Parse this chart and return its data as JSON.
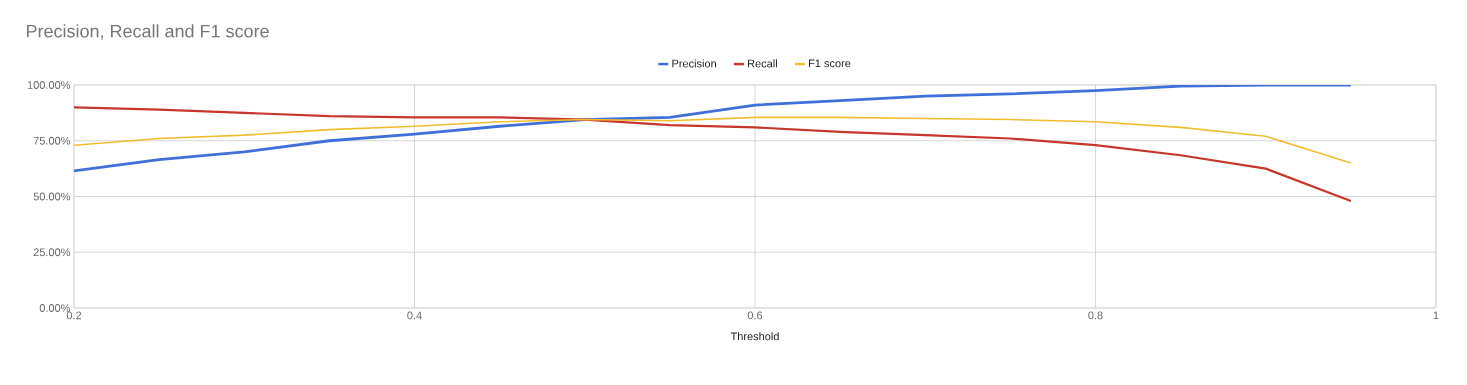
{
  "chart_data": {
    "type": "line",
    "title": "Precision, Recall and F1 score",
    "xlabel": "Threshold",
    "x": [
      0.2,
      0.25,
      0.3,
      0.35,
      0.4,
      0.45,
      0.5,
      0.55,
      0.6,
      0.65,
      0.7,
      0.75,
      0.8,
      0.85,
      0.9,
      0.95
    ],
    "series": [
      {
        "name": "Precision",
        "color": "#3f6fd8",
        "values": [
          61.5,
          66.5,
          70,
          75,
          78,
          81.5,
          84.5,
          85.5,
          91,
          93,
          95,
          96,
          97.5,
          99.5,
          100,
          100
        ]
      },
      {
        "name": "Recall",
        "color": "#c5362c",
        "values": [
          90,
          89,
          87.5,
          86,
          85.5,
          85.5,
          84.5,
          82,
          81,
          79,
          77.5,
          76,
          73,
          68.5,
          62.5,
          48
        ]
      },
      {
        "name": "F1 score",
        "color": "#f1bd2f",
        "values": [
          73,
          76,
          77.5,
          80,
          81.5,
          83.5,
          84.5,
          84,
          85.5,
          85.5,
          85,
          84.5,
          83.5,
          81,
          77,
          65
        ]
      }
    ],
    "xlim": [
      0.2,
      1
    ],
    "xticks": [
      0.2,
      0.4,
      0.6,
      0.8,
      1
    ],
    "ylim": [
      0,
      100
    ],
    "yticks": [
      {
        "value": 0,
        "label": "0.00%"
      },
      {
        "value": 25,
        "label": "25.00%"
      },
      {
        "value": 50,
        "label": "50.00%"
      },
      {
        "value": 75,
        "label": "75.00%"
      },
      {
        "value": 100,
        "label": "100.00%"
      }
    ],
    "grid": true,
    "legend": "top",
    "line_style": "solid"
  }
}
